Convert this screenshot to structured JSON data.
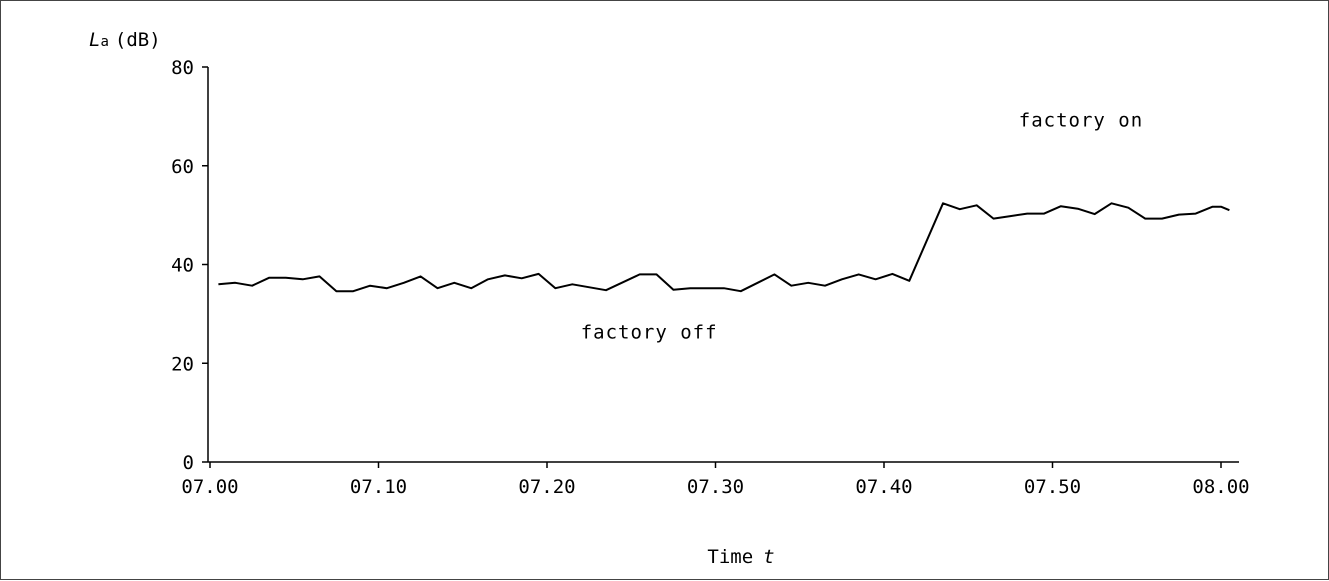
{
  "chart_data": {
    "type": "line",
    "title": "",
    "xlabel": "Time",
    "xlabel_var": "t",
    "ylabel": "(dB)",
    "ylabel_symbol": "L",
    "ylabel_subscript": "a",
    "xlim": [
      0,
      61
    ],
    "ylim": [
      0,
      80
    ],
    "grid": false,
    "yticks": [
      0,
      20,
      40,
      60,
      80
    ],
    "xticks": [
      {
        "value": 0,
        "label": "07.00"
      },
      {
        "value": 10,
        "label": "07.10"
      },
      {
        "value": 20,
        "label": "07.20"
      },
      {
        "value": 30,
        "label": "07.30"
      },
      {
        "value": 40,
        "label": "07.40"
      },
      {
        "value": 50,
        "label": "07.50"
      },
      {
        "value": 60,
        "label": "08.00"
      }
    ],
    "series": [
      {
        "x": [
          0.5,
          1.5,
          2.5,
          3.5,
          4.5,
          5.5,
          6.5,
          7.5,
          8.5,
          9.5,
          10.5,
          11.5,
          12.5,
          13.5,
          14.5,
          15.5,
          16.5,
          17.5,
          18.5,
          19.5,
          20.5,
          21.5,
          23.5,
          25.5,
          26.5,
          27.5,
          28.5,
          29.5,
          30.5,
          31.5,
          32.5,
          33.5,
          34.5,
          35.5,
          36.5,
          37.5,
          38.5,
          39.5,
          40.5,
          41.5,
          43.5,
          44.5,
          45.5,
          46.5,
          47.5,
          48.5,
          49.5,
          50.5,
          51.5,
          52.5,
          53.5,
          54.5,
          55.5,
          56.5,
          57.5,
          58.5,
          59.5,
          60.0,
          60.5
        ],
        "y": [
          36,
          36.3,
          35.7,
          37.3,
          37.3,
          37,
          37.6,
          34.6,
          34.6,
          35.7,
          35.2,
          36.3,
          37.6,
          35.2,
          36.3,
          35.2,
          37,
          37.8,
          37.2,
          38.1,
          35.2,
          36,
          34.8,
          38,
          38,
          34.9,
          35.2,
          35.2,
          35.2,
          34.6,
          36.3,
          38,
          35.7,
          36.3,
          35.7,
          37,
          38,
          37,
          38.1,
          36.7,
          52.4,
          51.2,
          52,
          49.3,
          49.8,
          50.3,
          50.3,
          51.8,
          51.3,
          50.2,
          52.4,
          51.5,
          49.3,
          49.3,
          50.1,
          50.3,
          51.7,
          51.7,
          51
        ]
      }
    ],
    "annotations": [
      {
        "text": "factory off",
        "x": 22,
        "y": 25
      },
      {
        "text": "factory on",
        "x": 48,
        "y": 68
      }
    ]
  }
}
